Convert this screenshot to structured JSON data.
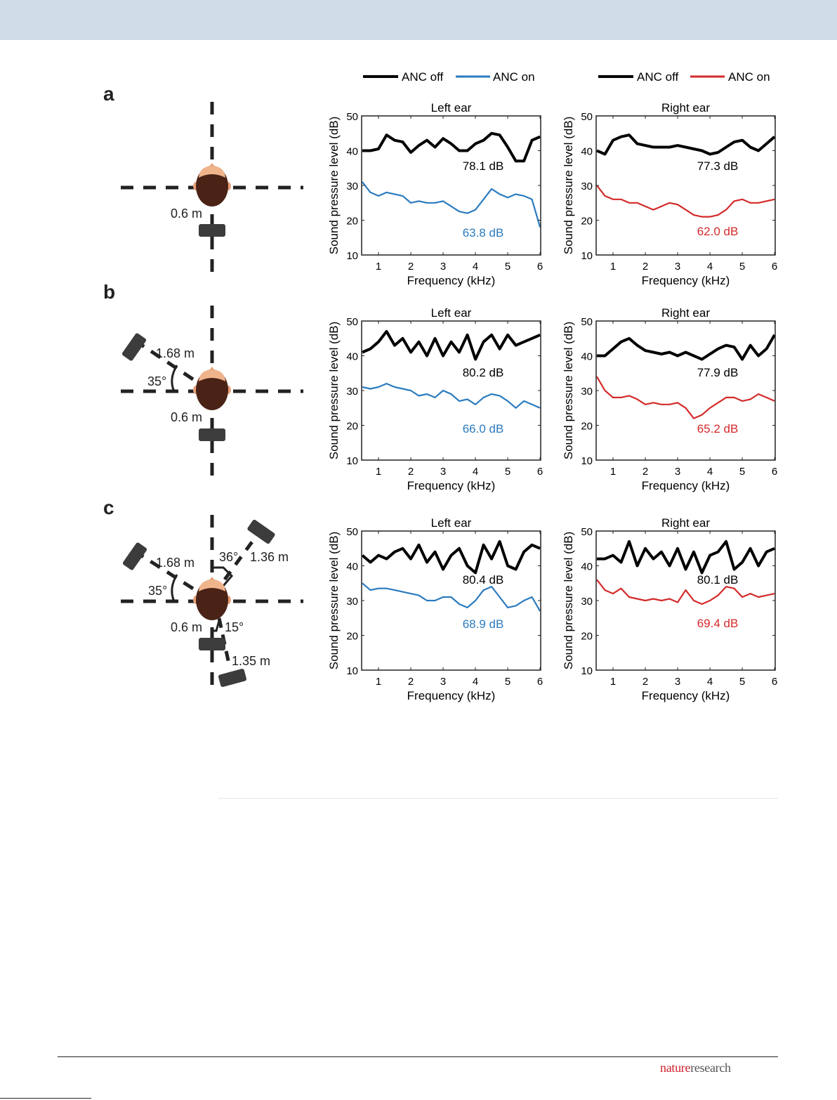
{
  "figure": {
    "panel_labels": [
      "a",
      "b",
      "c"
    ],
    "legends": [
      {
        "items": [
          {
            "label": "ANC off",
            "color": "#000000"
          },
          {
            "label": "ANC on",
            "color": "#2a7bbf"
          }
        ]
      },
      {
        "items": [
          {
            "label": "ANC off",
            "color": "#000000"
          },
          {
            "label": "ANC on",
            "color": "#d42a2a"
          }
        ]
      }
    ],
    "diagrams": {
      "a": {
        "distance_front": "0.6 m"
      },
      "b": {
        "distance_front": "0.6 m",
        "distance_left": "1.68 m",
        "angle_left": "35°"
      },
      "c": {
        "distance_front": "0.6 m",
        "distance_left": "1.68 m",
        "angle_left": "35°",
        "distance_right": "1.36 m",
        "angle_right": "36°",
        "distance_back": "1.35 m",
        "angle_back": "15°"
      }
    }
  },
  "footer": {
    "logo_part1": "nature",
    "logo_part2": "research"
  },
  "chart_data": [
    {
      "type": "line",
      "panel": "a",
      "title": "Left ear",
      "xlabel": "Frequency (kHz)",
      "ylabel": "Sound pressure level (dB)",
      "xlim": [
        0.5,
        6
      ],
      "ylim": [
        10,
        50
      ],
      "xticks": [
        1,
        2,
        3,
        4,
        5,
        6
      ],
      "yticks": [
        10,
        20,
        30,
        40,
        50
      ],
      "grid": false,
      "x": [
        0.5,
        0.75,
        1,
        1.25,
        1.5,
        1.75,
        2,
        2.25,
        2.5,
        2.75,
        3,
        3.25,
        3.5,
        3.75,
        4,
        4.25,
        4.5,
        4.75,
        5,
        5.25,
        5.5,
        5.75,
        6
      ],
      "series": [
        {
          "name": "ANC off",
          "color": "#000000",
          "values": [
            40,
            40,
            40.5,
            44.5,
            43,
            42.5,
            39.5,
            41.5,
            43,
            41,
            43.5,
            42,
            40,
            40,
            42,
            43,
            45,
            44.5,
            41,
            37,
            37,
            43,
            44
          ]
        },
        {
          "name": "ANC on",
          "color": "#2a7bbf",
          "values": [
            31,
            28,
            27,
            28,
            27.5,
            27,
            25,
            25.5,
            25,
            25,
            25.5,
            24,
            22.5,
            22,
            23,
            26,
            29,
            27.5,
            26.5,
            27.5,
            27,
            26,
            18
          ]
        }
      ],
      "annotations": [
        "78.1 dB",
        "63.8 dB"
      ]
    },
    {
      "type": "line",
      "panel": "a",
      "title": "Right ear",
      "xlabel": "Frequency (kHz)",
      "ylabel": "Sound pressure level (dB)",
      "xlim": [
        0.5,
        6
      ],
      "ylim": [
        10,
        50
      ],
      "xticks": [
        1,
        2,
        3,
        4,
        5,
        6
      ],
      "yticks": [
        10,
        20,
        30,
        40,
        50
      ],
      "grid": false,
      "x": [
        0.5,
        0.75,
        1,
        1.25,
        1.5,
        1.75,
        2,
        2.25,
        2.5,
        2.75,
        3,
        3.25,
        3.5,
        3.75,
        4,
        4.25,
        4.5,
        4.75,
        5,
        5.25,
        5.5,
        5.75,
        6
      ],
      "series": [
        {
          "name": "ANC off",
          "color": "#000000",
          "values": [
            40,
            39,
            43,
            44,
            44.5,
            42,
            41.5,
            41,
            41,
            41,
            41.5,
            41,
            40.5,
            40,
            39,
            39.5,
            41,
            42.5,
            43,
            41,
            40,
            42,
            44
          ]
        },
        {
          "name": "ANC on",
          "color": "#d42a2a",
          "values": [
            30,
            27,
            26,
            26,
            25,
            25,
            24,
            23,
            24,
            25,
            24.5,
            23,
            21.5,
            21,
            21,
            21.5,
            23,
            25.5,
            26,
            25,
            25,
            25.5,
            26
          ]
        }
      ],
      "annotations": [
        "77.3 dB",
        "62.0 dB"
      ]
    },
    {
      "type": "line",
      "panel": "b",
      "title": "Left ear",
      "xlabel": "Frequency (kHz)",
      "ylabel": "Sound pressure level (dB)",
      "xlim": [
        0.5,
        6
      ],
      "ylim": [
        10,
        50
      ],
      "xticks": [
        1,
        2,
        3,
        4,
        5,
        6
      ],
      "yticks": [
        10,
        20,
        30,
        40,
        50
      ],
      "grid": false,
      "x": [
        0.5,
        0.75,
        1,
        1.25,
        1.5,
        1.75,
        2,
        2.25,
        2.5,
        2.75,
        3,
        3.25,
        3.5,
        3.75,
        4,
        4.25,
        4.5,
        4.75,
        5,
        5.25,
        5.5,
        5.75,
        6
      ],
      "series": [
        {
          "name": "ANC off",
          "color": "#000000",
          "values": [
            41,
            42,
            44,
            47,
            43,
            45,
            41,
            44,
            40,
            45,
            40,
            44,
            41,
            46,
            39,
            44,
            46,
            42,
            46,
            43,
            44,
            45,
            46
          ]
        },
        {
          "name": "ANC on",
          "color": "#2a7bbf",
          "values": [
            31,
            30.5,
            31,
            32,
            31,
            30.5,
            30,
            28.5,
            29,
            28,
            30,
            29,
            27,
            27.5,
            26,
            28,
            29,
            28.5,
            27,
            25,
            27,
            26,
            25
          ]
        }
      ],
      "annotations": [
        "80.2 dB",
        "66.0 dB"
      ]
    },
    {
      "type": "line",
      "panel": "b",
      "title": "Right ear",
      "xlabel": "Frequency (kHz)",
      "ylabel": "Sound pressure level (dB)",
      "xlim": [
        0.5,
        6
      ],
      "ylim": [
        10,
        50
      ],
      "xticks": [
        1,
        2,
        3,
        4,
        5,
        6
      ],
      "yticks": [
        10,
        20,
        30,
        40,
        50
      ],
      "grid": false,
      "x": [
        0.5,
        0.75,
        1,
        1.25,
        1.5,
        1.75,
        2,
        2.25,
        2.5,
        2.75,
        3,
        3.25,
        3.5,
        3.75,
        4,
        4.25,
        4.5,
        4.75,
        5,
        5.25,
        5.5,
        5.75,
        6
      ],
      "series": [
        {
          "name": "ANC off",
          "color": "#000000",
          "values": [
            40,
            40,
            42,
            44,
            45,
            43,
            41.5,
            41,
            40.5,
            41,
            40,
            41,
            40,
            39,
            40.5,
            42,
            43,
            42.5,
            39,
            43,
            40,
            42,
            46
          ]
        },
        {
          "name": "ANC on",
          "color": "#d42a2a",
          "values": [
            34,
            30,
            28,
            28,
            28.5,
            27.5,
            26,
            26.5,
            26,
            26,
            26.5,
            25,
            22,
            23,
            25,
            26.5,
            28,
            28,
            27,
            27.5,
            29,
            28,
            27
          ]
        }
      ],
      "annotations": [
        "77.9 dB",
        "65.2 dB"
      ]
    },
    {
      "type": "line",
      "panel": "c",
      "title": "Left ear",
      "xlabel": "Frequency (kHz)",
      "ylabel": "Sound pressure level (dB)",
      "xlim": [
        0.5,
        6
      ],
      "ylim": [
        10,
        50
      ],
      "xticks": [
        1,
        2,
        3,
        4,
        5,
        6
      ],
      "yticks": [
        10,
        20,
        30,
        40,
        50
      ],
      "grid": false,
      "x": [
        0.5,
        0.75,
        1,
        1.25,
        1.5,
        1.75,
        2,
        2.25,
        2.5,
        2.75,
        3,
        3.25,
        3.5,
        3.75,
        4,
        4.25,
        4.5,
        4.75,
        5,
        5.25,
        5.5,
        5.75,
        6
      ],
      "series": [
        {
          "name": "ANC off",
          "color": "#000000",
          "values": [
            43,
            41,
            43,
            42,
            44,
            45,
            42,
            46,
            41,
            44,
            39,
            43,
            45,
            40,
            38,
            46,
            42,
            47,
            40,
            39,
            44,
            46,
            45
          ]
        },
        {
          "name": "ANC on",
          "color": "#2a7bbf",
          "values": [
            35,
            33,
            33.5,
            33.5,
            33,
            32.5,
            32,
            31.5,
            30,
            30,
            31,
            31,
            29,
            28,
            30,
            33,
            34,
            31,
            28,
            28.5,
            30,
            31,
            27
          ]
        }
      ],
      "annotations": [
        "80.4 dB",
        "68.9 dB"
      ]
    },
    {
      "type": "line",
      "panel": "c",
      "title": "Right ear",
      "xlabel": "Frequency (kHz)",
      "ylabel": "Sound pressure level (dB)",
      "xlim": [
        0.5,
        6
      ],
      "ylim": [
        10,
        50
      ],
      "xticks": [
        1,
        2,
        3,
        4,
        5,
        6
      ],
      "yticks": [
        10,
        20,
        30,
        40,
        50
      ],
      "grid": false,
      "x": [
        0.5,
        0.75,
        1,
        1.25,
        1.5,
        1.75,
        2,
        2.25,
        2.5,
        2.75,
        3,
        3.25,
        3.5,
        3.75,
        4,
        4.25,
        4.5,
        4.75,
        5,
        5.25,
        5.5,
        5.75,
        6
      ],
      "series": [
        {
          "name": "ANC off",
          "color": "#000000",
          "values": [
            42,
            42,
            43,
            41,
            47,
            40,
            45,
            42,
            44,
            40,
            45,
            39,
            44,
            38,
            43,
            44,
            47,
            39,
            41,
            45,
            40,
            44,
            45
          ]
        },
        {
          "name": "ANC on",
          "color": "#d42a2a",
          "values": [
            36,
            33,
            32,
            33.5,
            31,
            30.5,
            30,
            30.5,
            30,
            30.5,
            29.5,
            33,
            30,
            29,
            30,
            31.5,
            34,
            33.5,
            31,
            32,
            31,
            31.5,
            32
          ]
        }
      ],
      "annotations": [
        "80.1 dB",
        "69.4 dB"
      ]
    }
  ]
}
